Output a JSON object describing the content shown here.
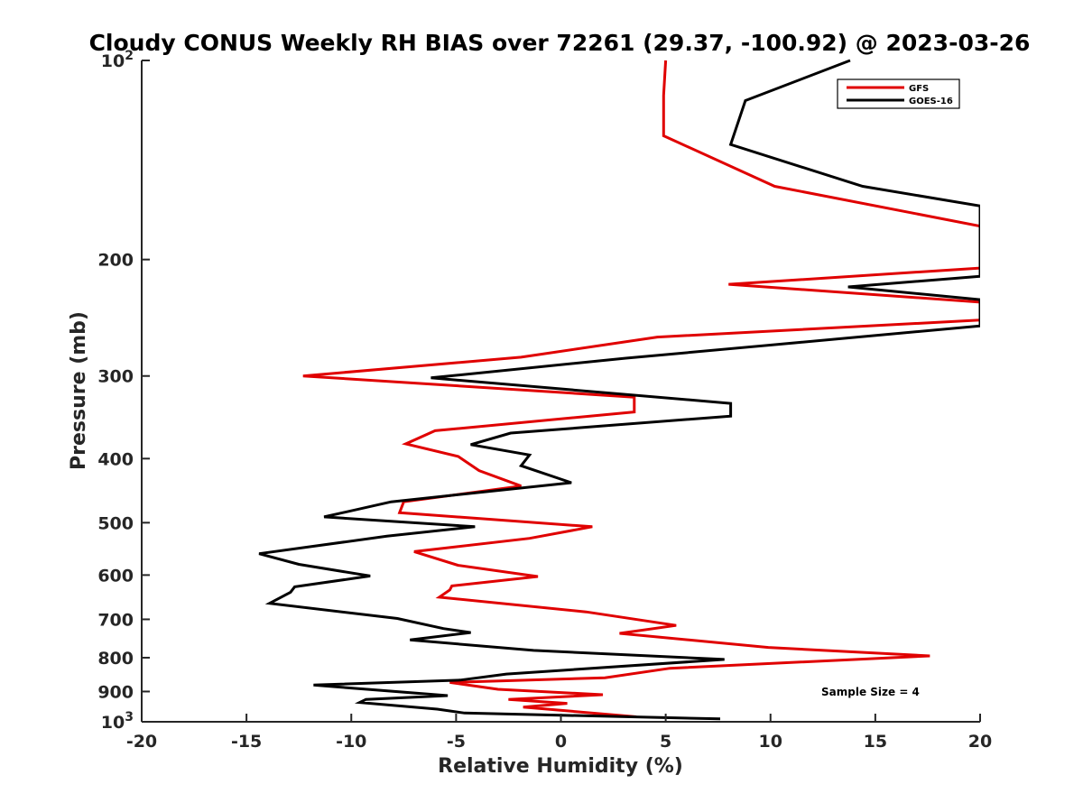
{
  "chart_data": {
    "type": "line",
    "title": "Cloudy CONUS Weekly RH BIAS over 72261 (29.37, -100.92) @ 2023-03-26",
    "xlabel": "Relative Humidity (%)",
    "ylabel": "Pressure (mb)",
    "xlim": [
      -20,
      20
    ],
    "ylim": [
      100,
      1000
    ],
    "y_scale": "log",
    "y_reversed": true,
    "grid": false,
    "legend_position": "top-right",
    "x_ticks": [
      "-20",
      "-15",
      "-10",
      "-5",
      "0",
      "5",
      "10",
      "15",
      "20"
    ],
    "y_ticks": [
      {
        "value": 100,
        "base": "10",
        "exp": "2"
      },
      {
        "value": 200,
        "label": "200"
      },
      {
        "value": 300,
        "label": "300"
      },
      {
        "value": 400,
        "label": "400"
      },
      {
        "value": 500,
        "label": "500"
      },
      {
        "value": 600,
        "label": "600"
      },
      {
        "value": 700,
        "label": "700"
      },
      {
        "value": 800,
        "label": "800"
      },
      {
        "value": 900,
        "label": "900"
      },
      {
        "value": 1000,
        "base": "10",
        "exp": "3"
      }
    ],
    "annotation": "Sample Size = 4",
    "series": [
      {
        "name": "GFS",
        "color": "#e00000",
        "points": [
          [
            5.0,
            100
          ],
          [
            4.9,
            113
          ],
          [
            4.9,
            130
          ],
          [
            10.2,
            155
          ],
          [
            20.0,
            178
          ],
          [
            20.0,
            206
          ],
          [
            8.0,
            218
          ],
          [
            20.0,
            232
          ],
          [
            20.0,
            247
          ],
          [
            4.6,
            262
          ],
          [
            -1.9,
            281
          ],
          [
            -12.3,
            300
          ],
          [
            3.5,
            323
          ],
          [
            3.5,
            340
          ],
          [
            -6.0,
            363
          ],
          [
            -7.4,
            380
          ],
          [
            -4.9,
            397
          ],
          [
            -3.9,
            417
          ],
          [
            -1.9,
            440
          ],
          [
            -7.5,
            465
          ],
          [
            -7.7,
            483
          ],
          [
            1.5,
            507
          ],
          [
            -1.5,
            528
          ],
          [
            -7.0,
            553
          ],
          [
            -4.9,
            580
          ],
          [
            -1.1,
            603
          ],
          [
            -5.2,
            623
          ],
          [
            -5.3,
            632
          ],
          [
            -5.8,
            648
          ],
          [
            1.2,
            682
          ],
          [
            5.5,
            715
          ],
          [
            2.8,
            735
          ],
          [
            9.9,
            772
          ],
          [
            17.6,
            795
          ],
          [
            5.2,
            830
          ],
          [
            2.1,
            858
          ],
          [
            -5.3,
            872
          ],
          [
            -3.0,
            893
          ],
          [
            2.0,
            910
          ],
          [
            -2.5,
            925
          ],
          [
            0.3,
            938
          ],
          [
            -1.8,
            950
          ],
          [
            3.6,
            983
          ]
        ]
      },
      {
        "name": "GOES-16",
        "color": "#000000",
        "points": [
          [
            13.8,
            100
          ],
          [
            8.8,
            115
          ],
          [
            8.1,
            134
          ],
          [
            14.4,
            155
          ],
          [
            20.0,
            166
          ],
          [
            20.0,
            212
          ],
          [
            13.7,
            220
          ],
          [
            20.0,
            230
          ],
          [
            20.0,
            252
          ],
          [
            10.8,
            268
          ],
          [
            3.1,
            282
          ],
          [
            -6.2,
            302
          ],
          [
            8.1,
            330
          ],
          [
            8.1,
            345
          ],
          [
            -2.4,
            366
          ],
          [
            -4.3,
            381
          ],
          [
            -1.5,
            395
          ],
          [
            -1.9,
            410
          ],
          [
            0.5,
            435
          ],
          [
            -8.1,
            465
          ],
          [
            -11.3,
            490
          ],
          [
            -4.1,
            507
          ],
          [
            -8.3,
            524
          ],
          [
            -14.4,
            557
          ],
          [
            -12.5,
            578
          ],
          [
            -9.1,
            602
          ],
          [
            -12.7,
            625
          ],
          [
            -12.9,
            637
          ],
          [
            -13.9,
            662
          ],
          [
            -7.8,
            698
          ],
          [
            -5.6,
            723
          ],
          [
            -4.3,
            733
          ],
          [
            -7.2,
            752
          ],
          [
            -1.3,
            780
          ],
          [
            7.8,
            805
          ],
          [
            -2.6,
            847
          ],
          [
            -4.8,
            865
          ],
          [
            -11.8,
            880
          ],
          [
            -5.4,
            913
          ],
          [
            -9.3,
            925
          ],
          [
            -9.6,
            935
          ],
          [
            -5.9,
            957
          ],
          [
            -4.6,
            970
          ],
          [
            7.6,
            990
          ]
        ]
      }
    ]
  }
}
